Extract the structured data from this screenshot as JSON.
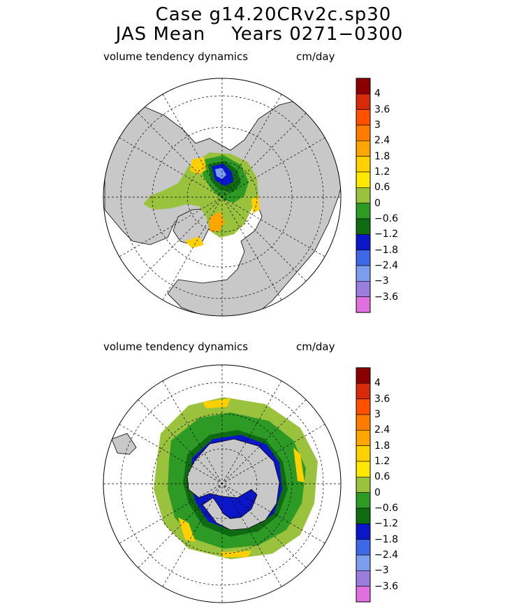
{
  "header": {
    "line1": "Case g14.20CRv2c.sp30",
    "line2": "JAS Mean    Years 0271−0300"
  },
  "panels": [
    {
      "title": "volume tendency dynamics",
      "units": "cm/day",
      "hemisphere": "north"
    },
    {
      "title": "volume tendency dynamics",
      "units": "cm/day",
      "hemisphere": "south"
    }
  ],
  "chart_data": {
    "type": "heatmap",
    "projection": "polar stereographic",
    "variable": "volume tendency dynamics",
    "units": "cm/day",
    "colorbar": {
      "labels": [
        "4",
        "3.6",
        "3",
        "2.4",
        "1.8",
        "1.2",
        "0.6",
        "0",
        "−0.6",
        "−1.2",
        "−1.8",
        "−2.4",
        "−3",
        "−3.6"
      ],
      "colors": [
        "#8b0000",
        "#d62a0a",
        "#ff4f00",
        "#ff7b00",
        "#ffa500",
        "#ffd000",
        "#ffe800",
        "#9ac23c",
        "#2e9a26",
        "#0f6b12",
        "#0b16c8",
        "#3f68e6",
        "#7b9dee",
        "#9a7ddc",
        "#e070e0"
      ]
    }
  }
}
